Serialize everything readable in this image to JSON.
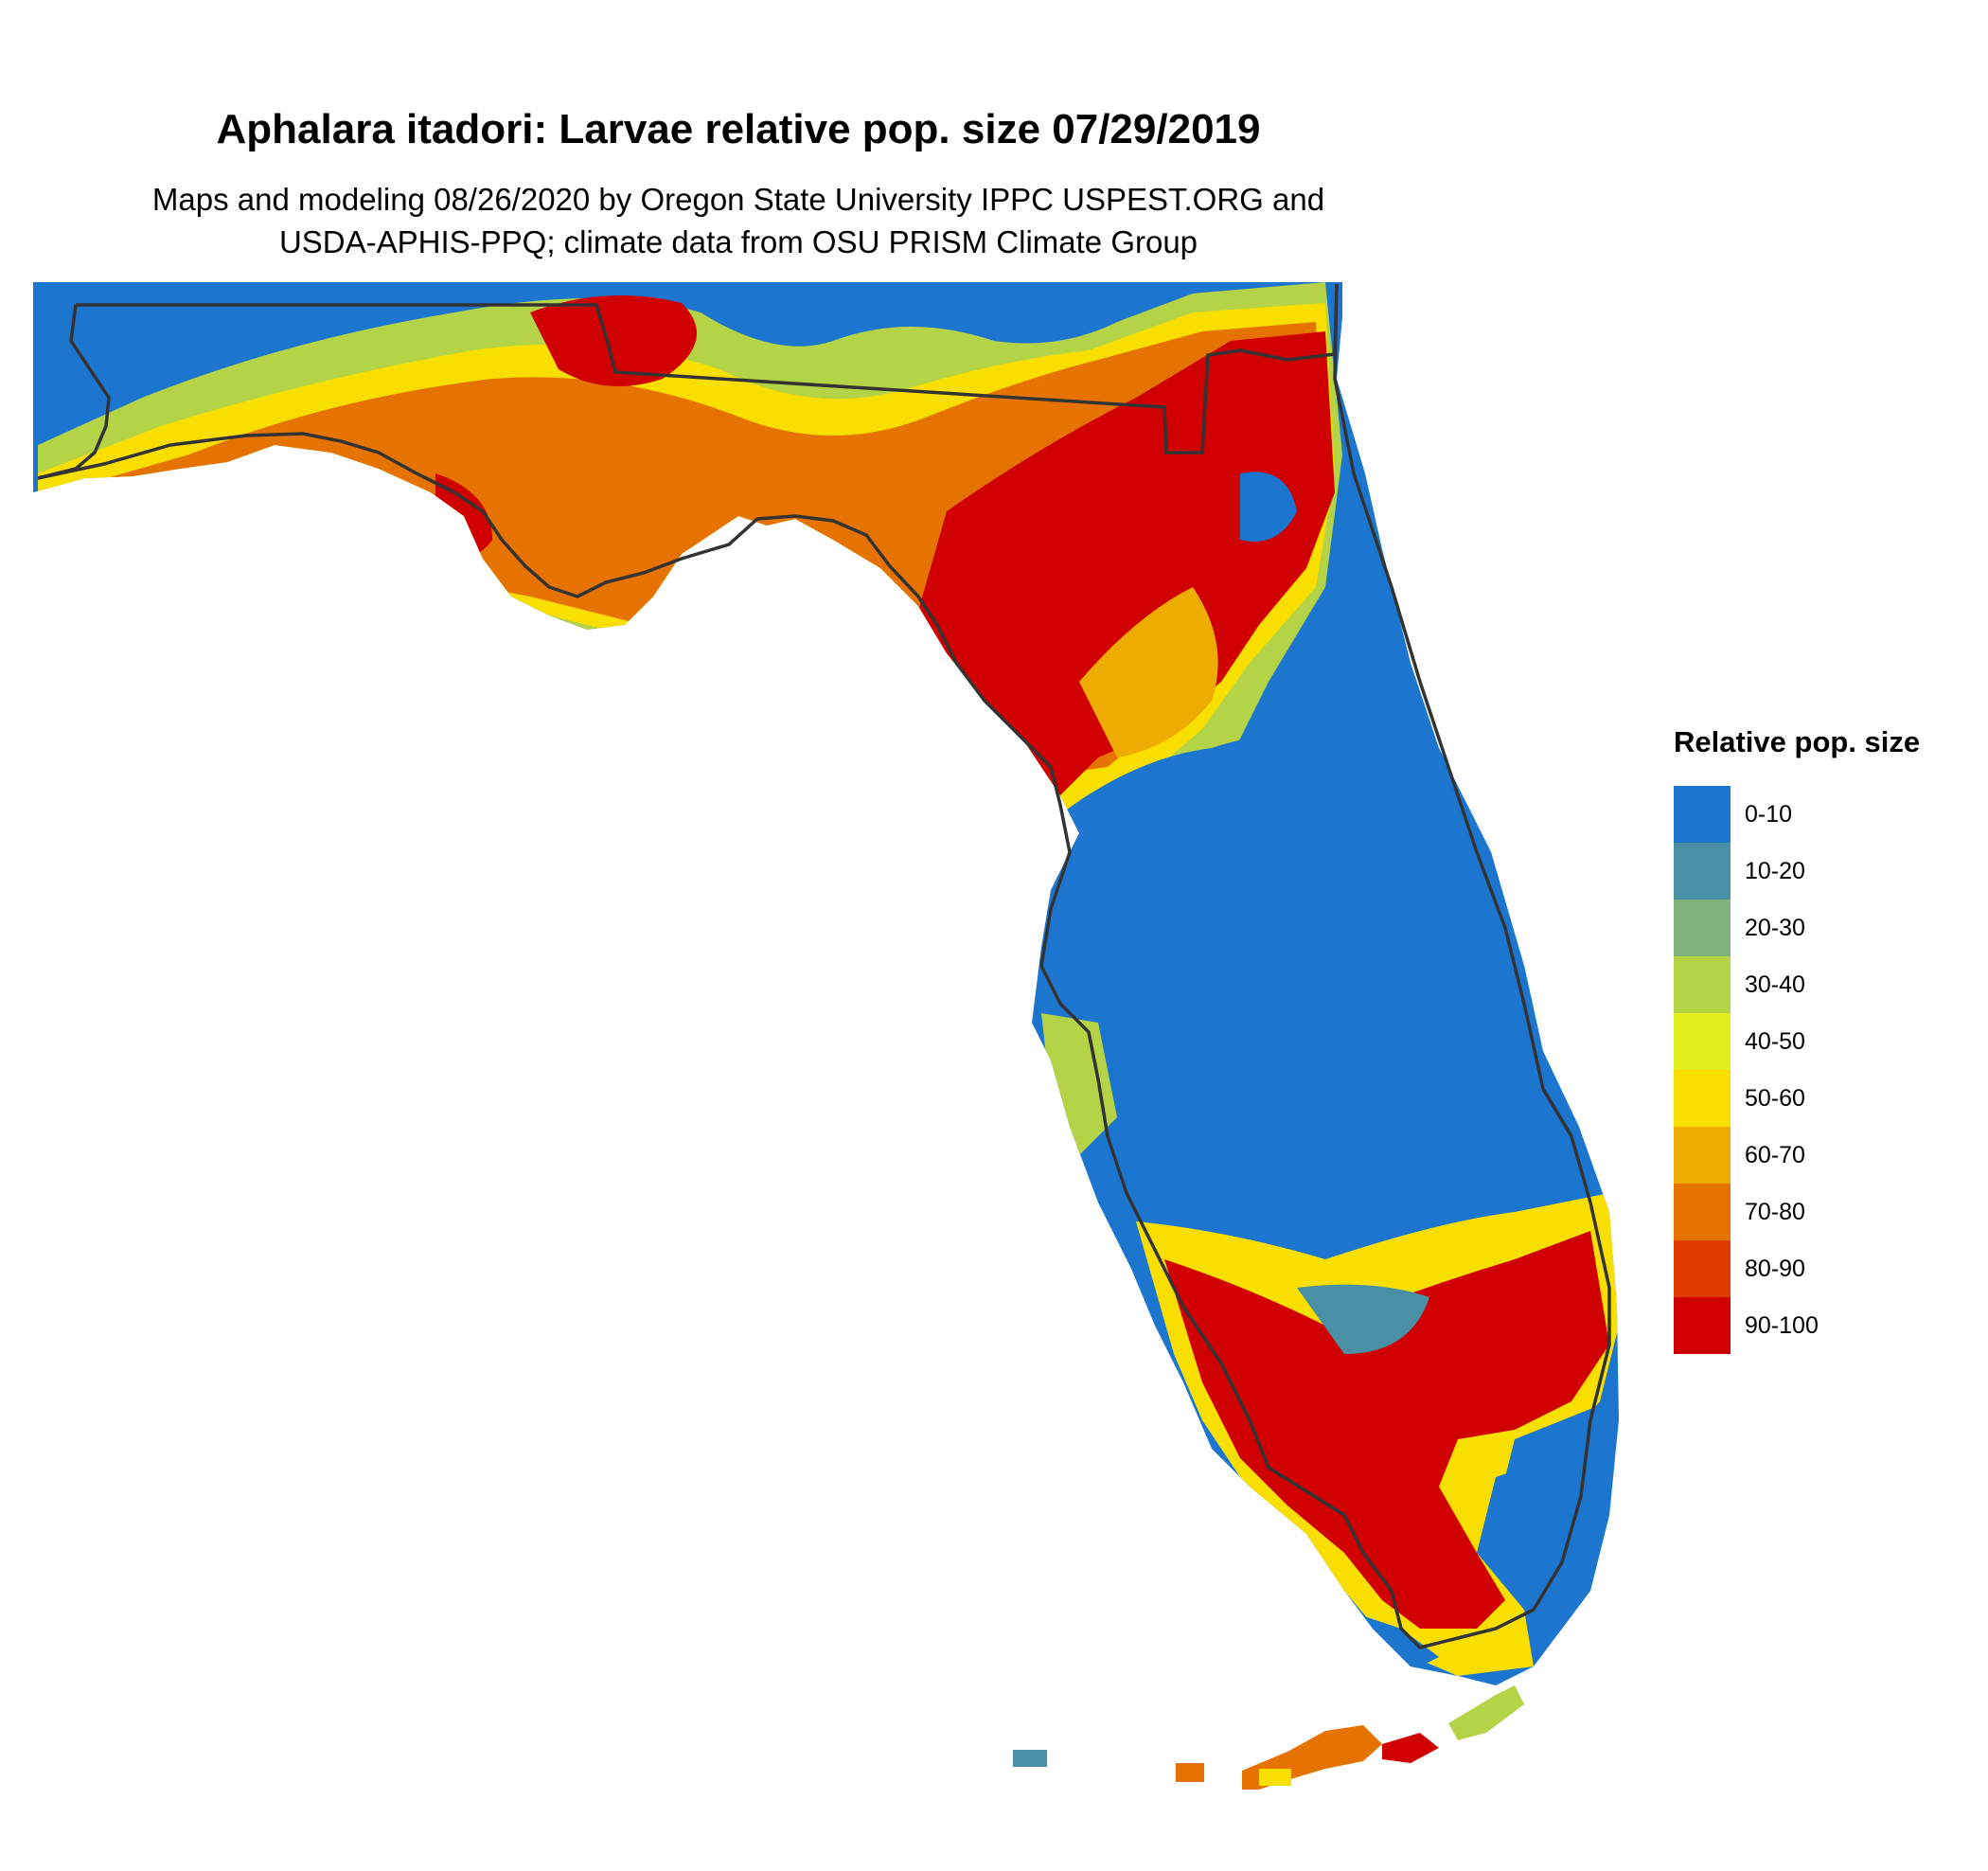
{
  "title": "Aphalara itadori: Larvae relative pop. size 07/29/2019",
  "subtitle": [
    "Maps and modeling 08/26/2020 by Oregon State University IPPC USPEST.ORG and",
    "USDA-APHIS-PPQ; climate data from OSU PRISM Climate Group"
  ],
  "legend": {
    "title": "Relative pop. size",
    "items": [
      {
        "label": "0-10",
        "color": "#1c75cf"
      },
      {
        "label": "10-20",
        "color": "#4a90a4"
      },
      {
        "label": "20-30",
        "color": "#7fb37a"
      },
      {
        "label": "30-40",
        "color": "#b5d346"
      },
      {
        "label": "40-50",
        "color": "#e3ef1d"
      },
      {
        "label": "50-60",
        "color": "#f8df00"
      },
      {
        "label": "60-70",
        "color": "#eeac00"
      },
      {
        "label": "70-80",
        "color": "#e67300"
      },
      {
        "label": "80-90",
        "color": "#dd3b00"
      },
      {
        "label": "90-100",
        "color": "#d10000"
      }
    ]
  }
}
